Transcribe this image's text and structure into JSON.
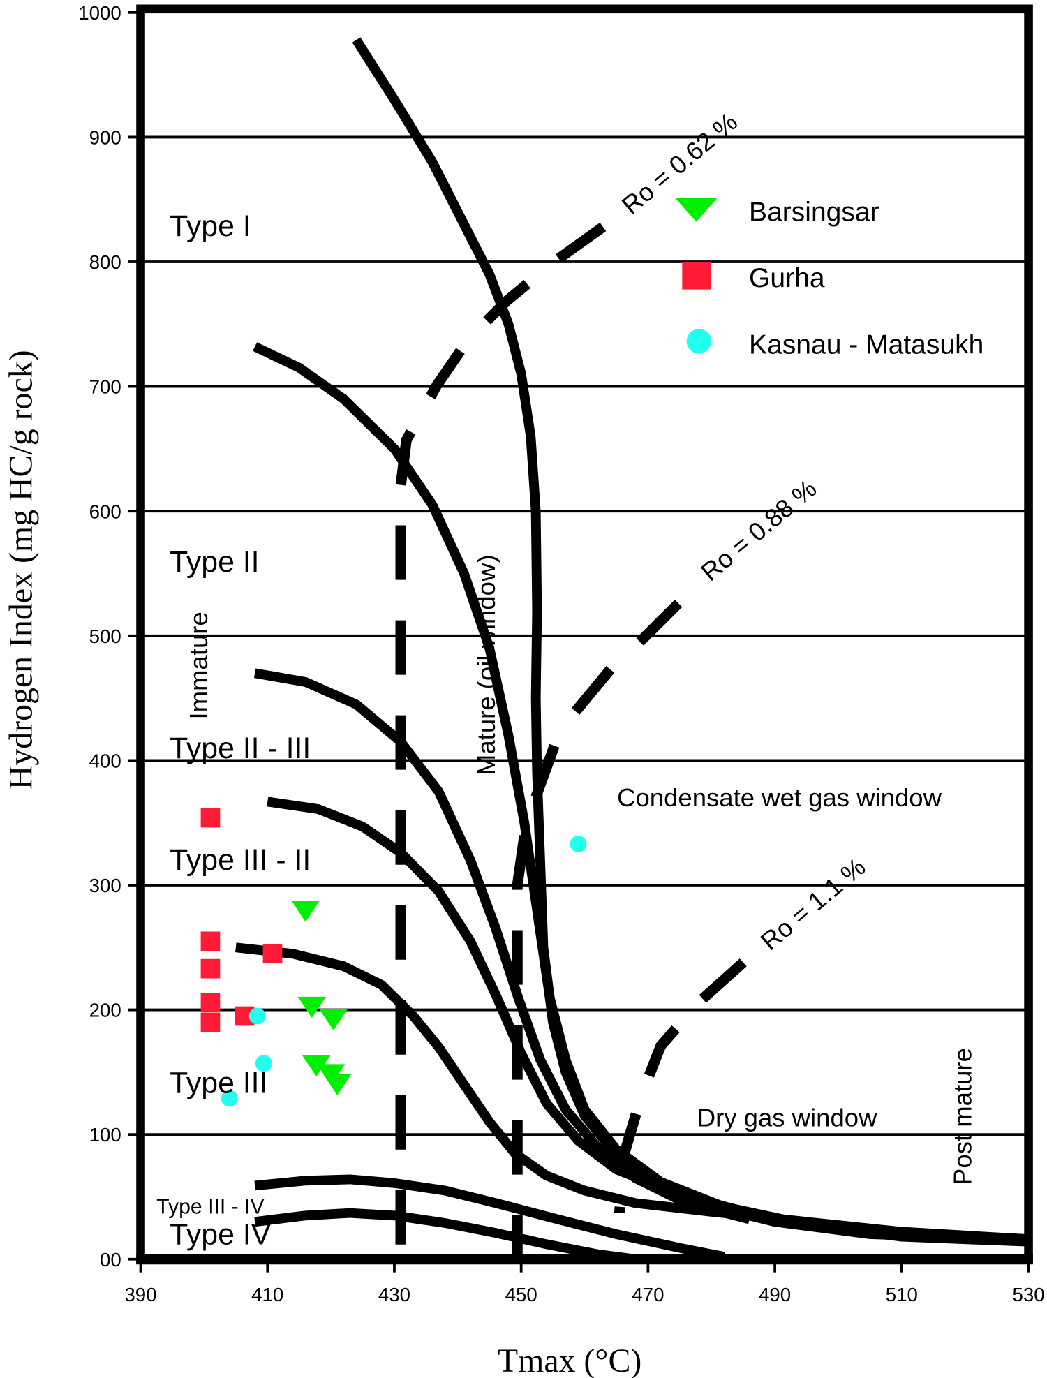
{
  "chart_data": {
    "type": "scatter",
    "title": "",
    "xlabel": "Tmax (°C)",
    "ylabel": "Hydrogen Index (mg HC/g rock)",
    "xlim": [
      390,
      530
    ],
    "ylim": [
      0,
      1000
    ],
    "grid": "horizontal",
    "x_ticks": [
      {
        "value": 390,
        "label": "390"
      },
      {
        "value": 410,
        "label": "410"
      },
      {
        "value": 430,
        "label": "430"
      },
      {
        "value": 450,
        "label": "450"
      },
      {
        "value": 470,
        "label": "470"
      },
      {
        "value": 490,
        "label": "490"
      },
      {
        "value": 510,
        "label": "510"
      },
      {
        "value": 530,
        "label": "530"
      }
    ],
    "y_ticks": [
      {
        "value": 0,
        "label": "00"
      },
      {
        "value": 100,
        "label": "100"
      },
      {
        "value": 200,
        "label": "200"
      },
      {
        "value": 300,
        "label": "300"
      },
      {
        "value": 400,
        "label": "400"
      },
      {
        "value": 500,
        "label": "500"
      },
      {
        "value": 600,
        "label": "600"
      },
      {
        "value": 700,
        "label": "700"
      },
      {
        "value": 800,
        "label": "800"
      },
      {
        "value": 900,
        "label": "900"
      },
      {
        "value": 1000,
        "label": "1000"
      }
    ],
    "legend_position": "top-right",
    "series": [
      {
        "name": "Barsingsar",
        "marker": "triangle-down",
        "color": "#00ee00",
        "points": [
          [
            416,
            279
          ],
          [
            417,
            202
          ],
          [
            420.4,
            192
          ],
          [
            417.7,
            155
          ],
          [
            420,
            148
          ],
          [
            421,
            140
          ]
        ]
      },
      {
        "name": "Gurha",
        "marker": "square",
        "color": "#ff1a35",
        "points": [
          [
            401,
            354
          ],
          [
            401,
            255
          ],
          [
            401,
            233
          ],
          [
            401,
            206
          ],
          [
            401,
            190
          ],
          [
            406.4,
            195
          ],
          [
            410.8,
            245
          ]
        ]
      },
      {
        "name": "Kasnau - Matasukh",
        "marker": "circle",
        "color": "#22ffee",
        "points": [
          [
            459,
            333
          ],
          [
            408.4,
            195
          ],
          [
            409.4,
            157
          ],
          [
            404,
            129
          ]
        ]
      }
    ],
    "kerogen_curves": [
      {
        "name": "Type I",
        "points": [
          [
            424,
            978
          ],
          [
            430,
            930
          ],
          [
            436,
            880
          ],
          [
            441,
            830
          ],
          [
            445,
            790
          ],
          [
            448,
            750
          ],
          [
            450,
            710
          ],
          [
            451.5,
            660
          ],
          [
            452.3,
            600
          ],
          [
            452.5,
            520
          ],
          [
            452.3,
            450
          ],
          [
            452.5,
            390
          ],
          [
            453,
            320
          ],
          [
            453.5,
            250
          ],
          [
            455,
            190
          ],
          [
            457,
            150
          ],
          [
            460,
            115
          ],
          [
            464,
            90
          ],
          [
            470,
            65
          ],
          [
            478,
            45
          ],
          [
            490,
            30
          ],
          [
            505,
            20
          ],
          [
            530,
            16
          ]
        ]
      },
      {
        "name": "Type II",
        "points": [
          [
            408,
            732
          ],
          [
            415,
            715
          ],
          [
            422,
            690
          ],
          [
            430,
            650
          ],
          [
            436,
            605
          ],
          [
            441,
            550
          ],
          [
            445,
            490
          ],
          [
            448,
            420
          ],
          [
            450.5,
            350
          ],
          [
            452.5,
            280
          ],
          [
            454.5,
            210
          ],
          [
            457,
            160
          ],
          [
            460,
            120
          ],
          [
            465,
            88
          ],
          [
            472,
            62
          ],
          [
            482,
            42
          ],
          [
            495,
            28
          ],
          [
            510,
            18
          ],
          [
            530,
            14
          ]
        ]
      },
      {
        "name": "Type II - III",
        "points": [
          [
            408,
            470
          ],
          [
            416,
            463
          ],
          [
            424,
            445
          ],
          [
            431,
            415
          ],
          [
            437,
            375
          ],
          [
            442,
            320
          ],
          [
            446,
            265
          ],
          [
            449.5,
            210
          ],
          [
            453,
            160
          ],
          [
            457,
            120
          ],
          [
            462,
            90
          ],
          [
            468,
            65
          ],
          [
            476,
            45
          ],
          [
            486,
            32
          ]
        ]
      },
      {
        "name": "Type III - II",
        "points": [
          [
            410,
            367
          ],
          [
            418,
            361
          ],
          [
            425,
            347
          ],
          [
            431,
            326
          ],
          [
            437,
            295
          ],
          [
            442,
            255
          ],
          [
            446,
            212
          ],
          [
            450,
            165
          ],
          [
            454,
            125
          ],
          [
            459,
            95
          ],
          [
            465,
            72
          ],
          [
            472,
            58
          ],
          [
            480,
            45
          ],
          [
            490,
            32
          ],
          [
            505,
            22
          ],
          [
            530,
            16
          ]
        ]
      },
      {
        "name": "Type III",
        "points": [
          [
            405,
            250
          ],
          [
            414,
            245
          ],
          [
            422,
            235
          ],
          [
            428,
            220
          ],
          [
            433,
            195
          ],
          [
            437,
            170
          ],
          [
            441,
            140
          ],
          [
            445,
            110
          ],
          [
            449,
            85
          ],
          [
            454,
            67
          ],
          [
            460,
            55
          ],
          [
            468,
            45
          ],
          [
            480,
            38
          ],
          [
            495,
            30
          ],
          [
            510,
            22
          ],
          [
            530,
            16
          ]
        ]
      },
      {
        "name": "Type III - IV",
        "points": [
          [
            408,
            59
          ],
          [
            416,
            63
          ],
          [
            423,
            64
          ],
          [
            430,
            61
          ],
          [
            438,
            55
          ],
          [
            446,
            45
          ],
          [
            455,
            33
          ],
          [
            465,
            20
          ],
          [
            475,
            9
          ],
          [
            482,
            2
          ]
        ]
      },
      {
        "name": "Type IV",
        "points": [
          [
            408,
            30
          ],
          [
            416,
            35
          ],
          [
            423,
            37
          ],
          [
            430,
            35
          ],
          [
            438,
            29
          ],
          [
            446,
            21
          ],
          [
            454,
            12
          ],
          [
            462,
            4
          ],
          [
            468,
            0
          ]
        ]
      }
    ],
    "maturity_lines": [
      {
        "name": "Ro = 0.62 %",
        "points": [
          [
            462.9,
            828
          ],
          [
            455.2,
            800
          ],
          [
            447.8,
            769
          ],
          [
            441.7,
            738
          ],
          [
            436.7,
            701
          ],
          [
            431.9,
            657
          ],
          [
            431,
            620
          ],
          [
            431,
            0
          ]
        ]
      },
      {
        "name": "Ro = 0.88 %",
        "points": [
          [
            474.8,
            526
          ],
          [
            468.1,
            492
          ],
          [
            464.2,
            474
          ],
          [
            458.2,
            437
          ],
          [
            455.4,
            414
          ],
          [
            452.4,
            372
          ],
          [
            450.6,
            343
          ],
          [
            449.4,
            300
          ],
          [
            449.4,
            0
          ]
        ]
      },
      {
        "name": "Ro = 1.1 %",
        "points": [
          [
            485,
            238
          ],
          [
            478,
            206
          ],
          [
            472,
            171
          ],
          [
            469,
            132
          ],
          [
            466,
            80
          ],
          [
            465.5,
            37
          ]
        ]
      }
    ],
    "annotations": {
      "type_i": "Type I",
      "type_ii": "Type II",
      "type_ii_iii": "Type II - III",
      "type_iii_ii": "Type III - II",
      "type_iii": "Type III",
      "type_iii_iv": "Type III - IV",
      "type_iv": "Type IV",
      "immature": "Immature",
      "mature": "Mature (oil window)",
      "condensate": "Condensate wet gas window",
      "dry_gas": "Dry gas window",
      "post_mature": "Post mature",
      "ro_062": "Ro = 0.62 %",
      "ro_088": "Ro = 0.88 %",
      "ro_11": "Ro = 1.1 %"
    }
  }
}
